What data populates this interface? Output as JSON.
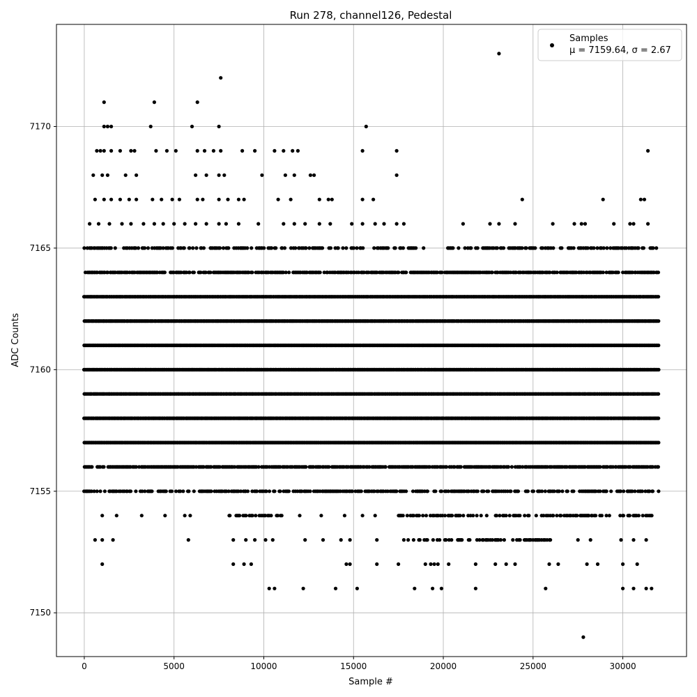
{
  "chart_data": {
    "type": "scatter",
    "title": "Run 278, channel126, Pedestal",
    "xlabel": "Sample #",
    "ylabel": "ADC Counts",
    "xlim": [
      -1550,
      33550
    ],
    "ylim": [
      7148.2,
      7174.2
    ],
    "x_ticks": [
      0,
      5000,
      10000,
      15000,
      20000,
      25000,
      30000
    ],
    "x_tick_labels": [
      "0",
      "5000",
      "10000",
      "15000",
      "20000",
      "25000",
      "30000"
    ],
    "y_ticks": [
      7150,
      7155,
      7160,
      7165,
      7170
    ],
    "y_tick_labels": [
      "7150",
      "7155",
      "7160",
      "7165",
      "7170"
    ],
    "grid": true,
    "legend_position": "top-right",
    "marker_color": "#000000",
    "n_samples": 32000,
    "series": [
      {
        "name": "Samples",
        "stats_label": "μ = 7159.64, σ = 2.67",
        "bands": [
          {
            "y": 7165,
            "ranges": [
              [
                0,
                19000
              ],
              [
                20000,
                32000
              ]
            ],
            "density": 0.45
          },
          {
            "y": 7164,
            "ranges": [
              [
                0,
                32000
              ]
            ],
            "density": 0.8
          },
          {
            "y": 7163,
            "ranges": [
              [
                0,
                32000
              ]
            ],
            "density": 1.0
          },
          {
            "y": 7162,
            "ranges": [
              [
                0,
                32000
              ]
            ],
            "density": 1.0
          },
          {
            "y": 7161,
            "ranges": [
              [
                0,
                32000
              ]
            ],
            "density": 1.0
          },
          {
            "y": 7160,
            "ranges": [
              [
                0,
                32000
              ]
            ],
            "density": 1.0
          },
          {
            "y": 7159,
            "ranges": [
              [
                0,
                32000
              ]
            ],
            "density": 1.0
          },
          {
            "y": 7158,
            "ranges": [
              [
                0,
                32000
              ]
            ],
            "density": 1.0
          },
          {
            "y": 7157,
            "ranges": [
              [
                0,
                32000
              ]
            ],
            "density": 1.0
          },
          {
            "y": 7156,
            "ranges": [
              [
                0,
                32000
              ]
            ],
            "density": 0.8
          },
          {
            "y": 7155,
            "ranges": [
              [
                0,
                32000
              ]
            ],
            "density": 0.55
          },
          {
            "y": 7154,
            "ranges": [
              [
                8000,
                11000
              ],
              [
                17500,
                32000
              ]
            ],
            "density": 0.4
          },
          {
            "y": 7153,
            "ranges": [
              [
                17500,
                26000
              ]
            ],
            "density": 0.35
          }
        ],
        "sparse_points": [
          [
            1100,
            7171
          ],
          [
            3900,
            7171
          ],
          [
            6300,
            7171
          ],
          [
            7600,
            7172
          ],
          [
            23100,
            7173
          ],
          [
            27800,
            7149
          ],
          [
            15700,
            7170
          ],
          [
            1100,
            7170
          ],
          [
            1300,
            7170
          ],
          [
            1500,
            7170
          ],
          [
            3700,
            7170
          ],
          [
            6000,
            7170
          ],
          [
            7500,
            7170
          ],
          [
            700,
            7169
          ],
          [
            900,
            7169
          ],
          [
            1100,
            7169
          ],
          [
            1500,
            7169
          ],
          [
            2000,
            7169
          ],
          [
            2600,
            7169
          ],
          [
            2800,
            7169
          ],
          [
            4000,
            7169
          ],
          [
            4600,
            7169
          ],
          [
            5100,
            7169
          ],
          [
            6300,
            7169
          ],
          [
            6700,
            7169
          ],
          [
            7200,
            7169
          ],
          [
            7600,
            7169
          ],
          [
            8800,
            7169
          ],
          [
            9500,
            7169
          ],
          [
            10600,
            7169
          ],
          [
            11100,
            7169
          ],
          [
            11600,
            7169
          ],
          [
            11900,
            7169
          ],
          [
            15500,
            7169
          ],
          [
            17400,
            7169
          ],
          [
            31400,
            7169
          ],
          [
            500,
            7168
          ],
          [
            1000,
            7168
          ],
          [
            1300,
            7168
          ],
          [
            2300,
            7168
          ],
          [
            2900,
            7168
          ],
          [
            6200,
            7168
          ],
          [
            6800,
            7168
          ],
          [
            7500,
            7168
          ],
          [
            7800,
            7168
          ],
          [
            9900,
            7168
          ],
          [
            11200,
            7168
          ],
          [
            11700,
            7168
          ],
          [
            12600,
            7168
          ],
          [
            12800,
            7168
          ],
          [
            17400,
            7168
          ],
          [
            600,
            7167
          ],
          [
            1100,
            7167
          ],
          [
            1500,
            7167
          ],
          [
            2000,
            7167
          ],
          [
            2500,
            7167
          ],
          [
            2900,
            7167
          ],
          [
            3800,
            7167
          ],
          [
            4300,
            7167
          ],
          [
            4900,
            7167
          ],
          [
            5300,
            7167
          ],
          [
            6300,
            7167
          ],
          [
            6600,
            7167
          ],
          [
            7500,
            7167
          ],
          [
            8000,
            7167
          ],
          [
            8600,
            7167
          ],
          [
            8900,
            7167
          ],
          [
            10800,
            7167
          ],
          [
            11500,
            7167
          ],
          [
            13100,
            7167
          ],
          [
            13600,
            7167
          ],
          [
            13800,
            7167
          ],
          [
            15500,
            7167
          ],
          [
            16100,
            7167
          ],
          [
            24400,
            7167
          ],
          [
            28900,
            7167
          ],
          [
            31000,
            7167
          ],
          [
            31200,
            7167
          ],
          [
            300,
            7166
          ],
          [
            800,
            7166
          ],
          [
            1400,
            7166
          ],
          [
            2100,
            7166
          ],
          [
            2600,
            7166
          ],
          [
            3300,
            7166
          ],
          [
            3900,
            7166
          ],
          [
            4400,
            7166
          ],
          [
            5000,
            7166
          ],
          [
            5600,
            7166
          ],
          [
            6200,
            7166
          ],
          [
            6800,
            7166
          ],
          [
            7500,
            7166
          ],
          [
            7900,
            7166
          ],
          [
            8600,
            7166
          ],
          [
            9700,
            7166
          ],
          [
            11100,
            7166
          ],
          [
            11700,
            7166
          ],
          [
            12300,
            7166
          ],
          [
            13100,
            7166
          ],
          [
            13700,
            7166
          ],
          [
            14900,
            7166
          ],
          [
            15500,
            7166
          ],
          [
            16200,
            7166
          ],
          [
            16700,
            7166
          ],
          [
            17400,
            7166
          ],
          [
            17800,
            7166
          ],
          [
            21100,
            7166
          ],
          [
            22600,
            7166
          ],
          [
            23100,
            7166
          ],
          [
            24000,
            7166
          ],
          [
            26100,
            7166
          ],
          [
            27300,
            7166
          ],
          [
            27700,
            7166
          ],
          [
            27900,
            7166
          ],
          [
            29500,
            7166
          ],
          [
            30400,
            7166
          ],
          [
            30600,
            7166
          ],
          [
            31400,
            7166
          ],
          [
            1000,
            7154
          ],
          [
            1800,
            7154
          ],
          [
            3200,
            7154
          ],
          [
            4500,
            7154
          ],
          [
            5600,
            7154
          ],
          [
            5900,
            7154
          ],
          [
            12000,
            7154
          ],
          [
            13200,
            7154
          ],
          [
            14500,
            7154
          ],
          [
            15500,
            7154
          ],
          [
            16200,
            7154
          ],
          [
            600,
            7153
          ],
          [
            1000,
            7153
          ],
          [
            1600,
            7153
          ],
          [
            5800,
            7153
          ],
          [
            8300,
            7153
          ],
          [
            9000,
            7153
          ],
          [
            9500,
            7153
          ],
          [
            10100,
            7153
          ],
          [
            10500,
            7153
          ],
          [
            12300,
            7153
          ],
          [
            13300,
            7153
          ],
          [
            14300,
            7153
          ],
          [
            14800,
            7153
          ],
          [
            16300,
            7153
          ],
          [
            27500,
            7153
          ],
          [
            28200,
            7153
          ],
          [
            29900,
            7153
          ],
          [
            30600,
            7153
          ],
          [
            31300,
            7153
          ],
          [
            1000,
            7152
          ],
          [
            8300,
            7152
          ],
          [
            8900,
            7152
          ],
          [
            9300,
            7152
          ],
          [
            14600,
            7152
          ],
          [
            14800,
            7152
          ],
          [
            16300,
            7152
          ],
          [
            17500,
            7152
          ],
          [
            19000,
            7152
          ],
          [
            19300,
            7152
          ],
          [
            19500,
            7152
          ],
          [
            19700,
            7152
          ],
          [
            20300,
            7152
          ],
          [
            21800,
            7152
          ],
          [
            22900,
            7152
          ],
          [
            23500,
            7152
          ],
          [
            24000,
            7152
          ],
          [
            25900,
            7152
          ],
          [
            26400,
            7152
          ],
          [
            28000,
            7152
          ],
          [
            28600,
            7152
          ],
          [
            30000,
            7152
          ],
          [
            30800,
            7152
          ],
          [
            10300,
            7151
          ],
          [
            10600,
            7151
          ],
          [
            12200,
            7151
          ],
          [
            14000,
            7151
          ],
          [
            15200,
            7151
          ],
          [
            18400,
            7151
          ],
          [
            19400,
            7151
          ],
          [
            19900,
            7151
          ],
          [
            21800,
            7151
          ],
          [
            25700,
            7151
          ],
          [
            30000,
            7151
          ],
          [
            30600,
            7151
          ],
          [
            31300,
            7151
          ],
          [
            31600,
            7151
          ]
        ]
      }
    ]
  }
}
